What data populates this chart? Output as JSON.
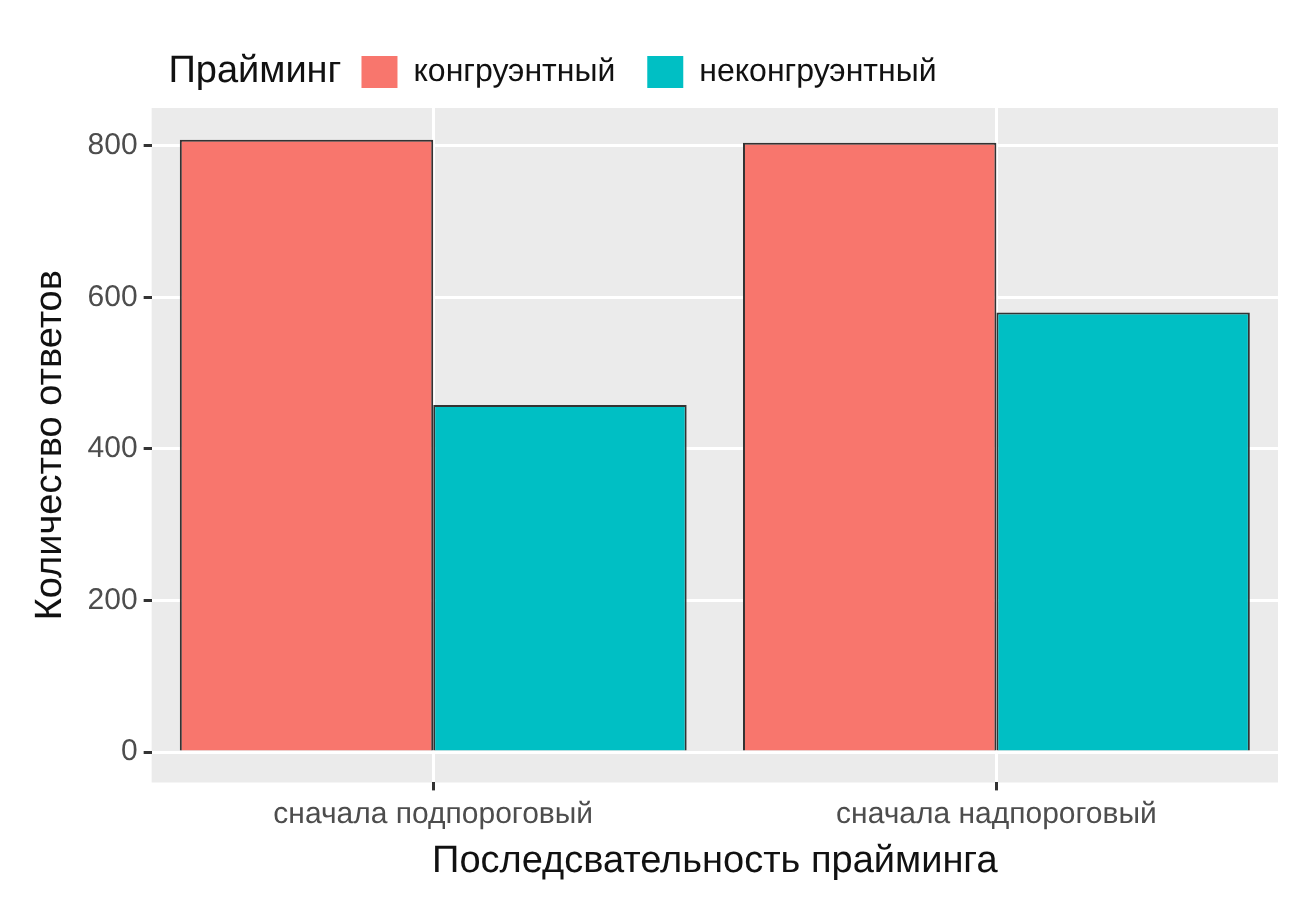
{
  "chart_data": {
    "type": "bar",
    "xlabel": "Последсвательность прайминга",
    "ylabel": "Количество ответов",
    "legend_title": "Прайминг",
    "legend": "top",
    "categories": [
      "сначала подпороговый",
      "сначала надпороговый"
    ],
    "series": [
      {
        "name": "конгруэнтный",
        "color": "#f8766d",
        "values": [
          808,
          804
        ]
      },
      {
        "name": "неконгруэнтный",
        "color": "#00bfc4",
        "values": [
          458,
          580
        ]
      }
    ],
    "ylim": [
      -40,
      850
    ],
    "yticks": [
      0,
      200,
      400,
      600,
      800
    ],
    "grid": true
  }
}
